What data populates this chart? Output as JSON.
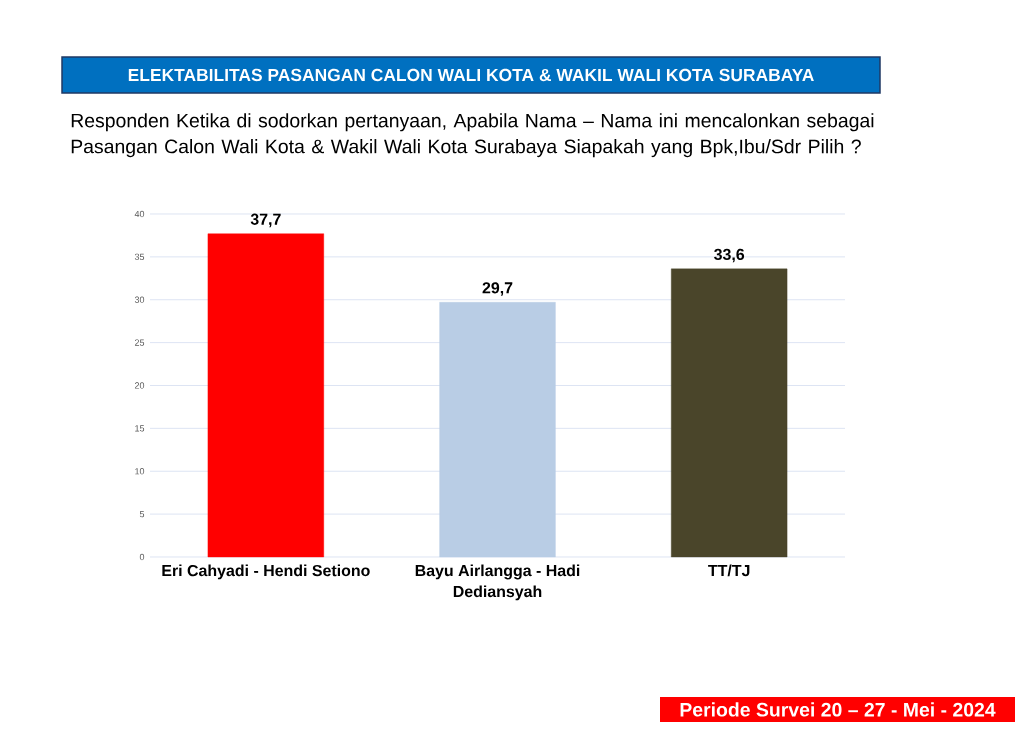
{
  "chart_data": {
    "type": "bar",
    "title": "ELEKTABILITAS PASANGAN CALON WALI KOTA & WAKIL WALI KOTA SURABAYA",
    "subtitle": "Responden Ketika di sodorkan pertanyaan, Apabila Nama – Nama ini mencalonkan sebagai Pasangan Calon Wali Kota & Wakil Wali Kota Surabaya Siapakah yang Bpk,Ibu/Sdr Pilih ?",
    "categories": [
      "Eri Cahyadi - Hendi Setiono",
      "Bayu Airlangga - Hadi Dediansyah",
      "TT/TJ"
    ],
    "values": [
      37.7,
      29.7,
      33.6
    ],
    "colors": [
      "#ff0000",
      "#b9cde5",
      "#4a452a"
    ],
    "value_labels": [
      "37,7",
      "29,7",
      "33,6"
    ],
    "ylim": [
      0,
      40
    ],
    "yticks": [
      0,
      5,
      10,
      15,
      20,
      25,
      30,
      35,
      40
    ],
    "grid": "y",
    "annotations": [
      "Periode Survei 20 – 27 - Mei - 2024"
    ]
  }
}
